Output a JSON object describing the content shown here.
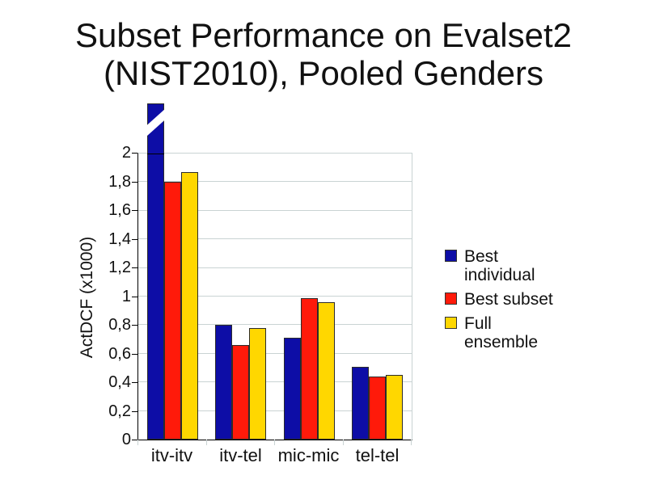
{
  "slide": {
    "title_line1": "Subset Performance on Evalset2",
    "title_line2": "(NIST2010), Pooled Genders"
  },
  "chart_data": {
    "type": "bar",
    "title": "Subset Performance on Evalset2 (NIST2010), Pooled Genders",
    "xlabel": "",
    "ylabel": "ActDCF (x1000)",
    "categories": [
      "itv-itv",
      "itv-tel",
      "mic-mic",
      "tel-tel"
    ],
    "series": [
      {
        "name": "Best individual",
        "color": "#0d0da6",
        "values": [
          2.35,
          0.8,
          0.71,
          0.51
        ]
      },
      {
        "name": "Best subset",
        "color": "#ff1a0a",
        "values": [
          1.8,
          0.66,
          0.99,
          0.44
        ]
      },
      {
        "name": "Full ensemble",
        "color": "#ffd700",
        "values": [
          1.87,
          0.78,
          0.96,
          0.45
        ]
      }
    ],
    "broken_bar": {
      "series_index": 0,
      "category_index": 0,
      "note": "Blue itv-itv bar exceeds the y-axis maximum of 2; it is drawn overflowing the plot with a white diagonal break marker"
    },
    "ylim": [
      0,
      2
    ],
    "ytick_step": 0.2,
    "ytick_labels": [
      "0",
      "0,2",
      "0,4",
      "0,6",
      "0,8",
      "1",
      "1,2",
      "1,4",
      "1,6",
      "1,8",
      "2"
    ],
    "grid": true,
    "legend_position": "right",
    "legend": [
      {
        "label_lines": [
          "Best",
          "individual"
        ],
        "color": "#0d0da6"
      },
      {
        "label_lines": [
          "Best subset"
        ],
        "color": "#ff1a0a"
      },
      {
        "label_lines": [
          "Full",
          "ensemble"
        ],
        "color": "#ffd700"
      }
    ],
    "colors": {
      "gridline": "#c9d3d3",
      "axis": "#000000",
      "bar_border": "#2b2b2b",
      "text": "#111111",
      "background": "#ffffff"
    }
  }
}
